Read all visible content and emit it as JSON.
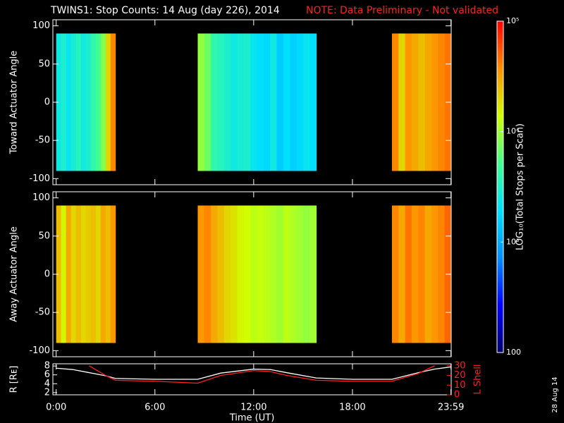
{
  "chart_data": [
    {
      "type": "heatmap",
      "title": "TWINS1: Stop Counts: 14 Aug (day 226), 2014",
      "note": "NOTE: Data Preliminary - Not validated",
      "ylabel": "Toward Actuator Angle",
      "xlim": [
        -0.2,
        24
      ],
      "ylim": [
        -108,
        108
      ],
      "yticks": [
        -100,
        -50,
        0,
        50,
        100
      ],
      "angle_range": [
        -90,
        90
      ],
      "blocks": [
        {
          "start": 0,
          "end": 3.6,
          "values": [
            2500,
            3000,
            2200,
            2800,
            3500,
            2600,
            3000,
            4000,
            5000,
            8000,
            20000,
            40000
          ]
        },
        {
          "start": 8.6,
          "end": 15.8,
          "values": [
            9000,
            7000,
            4000,
            3500,
            3000,
            2500,
            2800,
            3000,
            2200,
            2000,
            1800,
            2500,
            1500,
            2000,
            1600,
            1800,
            2200,
            2000
          ]
        },
        {
          "start": 20.4,
          "end": 24,
          "values": [
            40000,
            20000,
            35000,
            30000,
            25000,
            30000,
            35000,
            40000,
            45000
          ]
        }
      ]
    },
    {
      "type": "heatmap",
      "ylabel": "Away Actuator Angle",
      "xlim": [
        -0.2,
        24
      ],
      "ylim": [
        -108,
        108
      ],
      "yticks": [
        -100,
        -50,
        0,
        50,
        100
      ],
      "angle_range": [
        -90,
        90
      ],
      "blocks": [
        {
          "start": 0,
          "end": 3.6,
          "values": [
            25000,
            15000,
            30000,
            20000,
            25000,
            20000,
            22000,
            25000,
            20000,
            30000,
            25000,
            35000
          ]
        },
        {
          "start": 8.6,
          "end": 15.8,
          "values": [
            35000,
            40000,
            30000,
            25000,
            20000,
            18000,
            15000,
            14000,
            12000,
            13000,
            12000,
            11000,
            10000,
            12000,
            11000,
            10000,
            9000,
            10000
          ]
        },
        {
          "start": 20.4,
          "end": 24,
          "values": [
            40000,
            30000,
            45000,
            35000,
            40000,
            30000,
            35000,
            40000,
            50000
          ]
        }
      ]
    },
    {
      "type": "colorbar",
      "label": "LOG₁₀(Total Stops per Scan)",
      "zlim": [
        100,
        100000
      ],
      "log": true,
      "zticks": [
        {
          "value": 100000,
          "label": "10⁵"
        },
        {
          "value": 10000,
          "label": "10⁴"
        },
        {
          "value": 1000,
          "label": "10³"
        },
        100
      ],
      "colormap": [
        "#000070",
        "#0000ff",
        "#0090ff",
        "#00e0ff",
        "#40ff90",
        "#d0ff00",
        "#ff9000",
        "#ff0000"
      ]
    },
    {
      "type": "line",
      "xlabel": "Time (UT)",
      "annotation": "28 Aug 14",
      "xlim": [
        -0.2,
        24
      ],
      "xticks": [
        {
          "value": 0,
          "label": "0:00"
        },
        {
          "value": 6,
          "label": "6:00"
        },
        {
          "value": 12,
          "label": "12:00"
        },
        {
          "value": 18,
          "label": "18:00"
        },
        {
          "value": 23.9833,
          "label": "23:59"
        }
      ],
      "ylim": [
        1.5,
        8.5
      ],
      "yticks": [
        2,
        4,
        6,
        8
      ],
      "y2lim": [
        0,
        32
      ],
      "y2ticks": [
        0,
        10,
        20,
        30
      ],
      "x": [
        0,
        1,
        2,
        3,
        3.6,
        6,
        8.6,
        10,
        12,
        13,
        14,
        15.8,
        18,
        20.4,
        22,
        23,
        23.99
      ],
      "series": [
        {
          "name": "R [Rᴇ]",
          "color": "#ffffff",
          "values": [
            7.5,
            7.2,
            6.5,
            5.8,
            5.2,
            5.0,
            5.0,
            6.4,
            7.3,
            7.2,
            6.5,
            5.3,
            5.0,
            5.0,
            6.5,
            7.3,
            7.8
          ]
        },
        {
          "name": "L Shell",
          "color": "#ff2020",
          "axis": "y2",
          "values": [
            null,
            null,
            30,
            20,
            15,
            14,
            12,
            20,
            25,
            24,
            20,
            15,
            14,
            14,
            22,
            30,
            null
          ]
        }
      ]
    }
  ]
}
